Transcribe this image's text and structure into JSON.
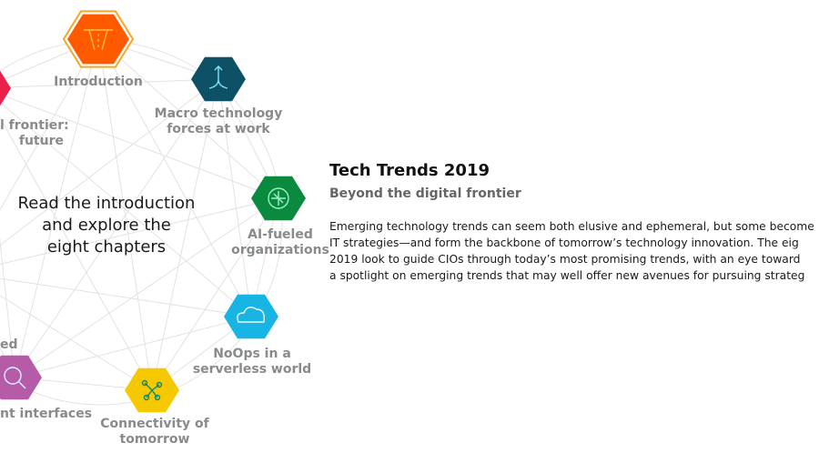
{
  "wheel": {
    "center_lines": [
      "Read the introduction",
      "and explore the",
      "eight chapters"
    ],
    "nodes": [
      {
        "id": "introduction",
        "lines": [
          "Introduction"
        ],
        "color": "#ff5a00",
        "highlight": "#f6a623",
        "icon": "road-icon"
      },
      {
        "id": "macro",
        "lines": [
          "Macro technology",
          "forces at work"
        ],
        "color": "#0e5066",
        "icon": "branching-arrows-icon"
      },
      {
        "id": "ai",
        "lines": [
          "AI-fueled",
          "organizations"
        ],
        "color": "#0a8a3e",
        "icon": "ai-brain-icon"
      },
      {
        "id": "noops",
        "lines": [
          "NoOps in a",
          "serverless world"
        ],
        "color": "#18b4e4",
        "icon": "cloud-icon"
      },
      {
        "id": "connectivity",
        "lines": [
          "Connectivity of",
          "tomorrow"
        ],
        "color": "#f6c800",
        "icon": "network-nodes-icon"
      },
      {
        "id": "interfaces",
        "lines": [
          "nt interfaces"
        ],
        "color": "#b55ba8",
        "icon": "magnifier-icon"
      },
      {
        "id": "partial-left",
        "lines": [
          "ed"
        ],
        "color": "#b55ba8",
        "icon": "none"
      },
      {
        "id": "frontier",
        "lines": [
          "l frontier:",
          "future"
        ],
        "color": "#e8224b",
        "icon": "none"
      }
    ]
  },
  "info": {
    "title": "Tech Trends 2019",
    "subtitle": "Beyond the digital frontier",
    "body_lines": [
      "Emerging technology trends can seem both elusive and ephemeral, but some become",
      "IT strategies—and form the backbone of tomorrow’s technology innovation. The eig",
      "2019 look to guide CIOs through today’s most promising trends, with an eye toward",
      "a spotlight on emerging trends that may well offer new avenues for pursuing strateg"
    ]
  }
}
